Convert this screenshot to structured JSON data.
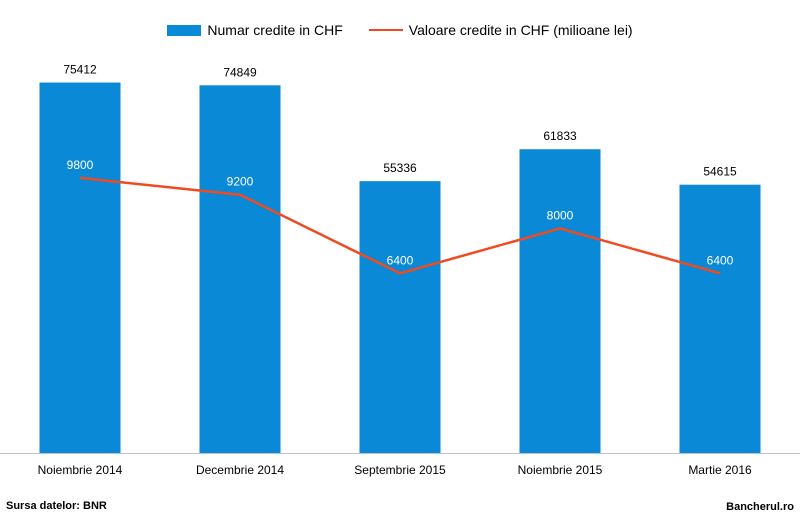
{
  "chart_data": {
    "type": "bar",
    "categories": [
      "Noiembrie 2014",
      "Decembrie 2014",
      "Septembrie 2015",
      "Noiembrie 2015",
      "Martie 2016"
    ],
    "series": [
      {
        "name": "Numar credite in CHF",
        "type": "bar",
        "color": "#0a8ad6",
        "values": [
          75412,
          74849,
          55336,
          61833,
          54615
        ]
      },
      {
        "name": "Valoare credite in CHF (milioane lei)",
        "type": "line",
        "color": "#f04a22",
        "values": [
          9800,
          9200,
          6400,
          8000,
          6400
        ]
      }
    ],
    "bar_ylim": [
      0,
      80000
    ],
    "line_ylim": [
      0,
      14000
    ],
    "title": "",
    "xlabel": "",
    "ylabel": "",
    "grid": false,
    "legend_position": "top-center"
  },
  "footer": {
    "source": "Sursa datelor: BNR",
    "brand": "Bancherul.ro"
  }
}
